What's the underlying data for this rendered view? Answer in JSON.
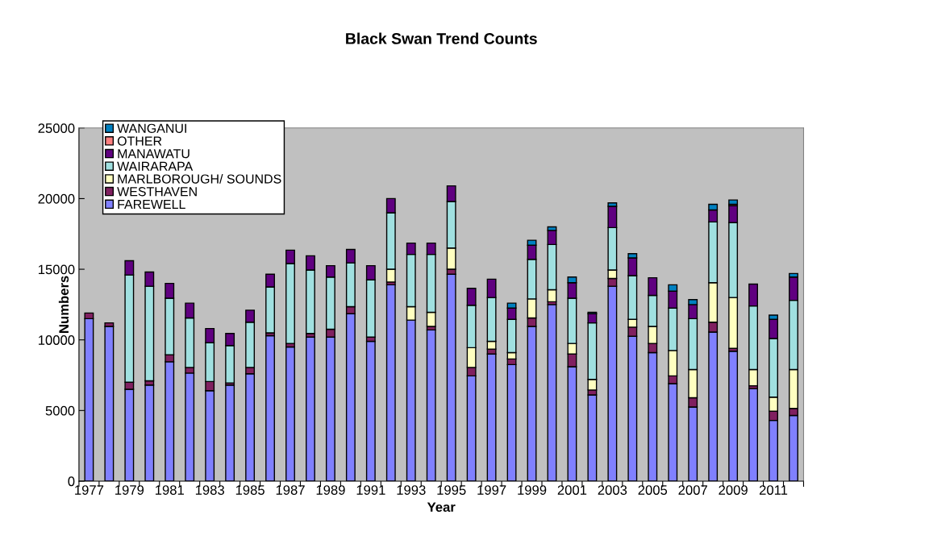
{
  "chart_data": {
    "type": "bar",
    "stacked": true,
    "title": "Black Swan Trend Counts",
    "xlabel": "Year",
    "ylabel": "Numbers",
    "categories": [
      "1977",
      null,
      "1979",
      null,
      "1981",
      null,
      "1983",
      null,
      "1985",
      null,
      "1987",
      null,
      "1989",
      null,
      "1991",
      null,
      "1993",
      null,
      "1995",
      null,
      "1997",
      null,
      "1999",
      null,
      "2001",
      null,
      "2003",
      null,
      "2005",
      null,
      "2007",
      null,
      "2009",
      null,
      "2011",
      null
    ],
    "ylim": [
      0,
      25000
    ],
    "yticks": [
      0,
      5000,
      10000,
      15000,
      20000,
      25000
    ],
    "grid": false,
    "legend": "top left",
    "series": [
      {
        "name": "FAREWELL",
        "color": "#8080ff",
        "values": [
          11500,
          10950,
          6500,
          6800,
          8450,
          7650,
          6400,
          6800,
          7600,
          10300,
          9500,
          10200,
          10200,
          11850,
          9900,
          13900,
          11400,
          10700,
          14650,
          7450,
          9000,
          8250,
          10950,
          12500,
          8100,
          6100,
          13800,
          10250,
          9100,
          6900,
          5250,
          10550,
          9200,
          6550,
          4300,
          4650
        ]
      },
      {
        "name": "WESTHAVEN",
        "color": "#802060",
        "values": [
          400,
          250,
          500,
          300,
          500,
          400,
          650,
          150,
          450,
          200,
          250,
          250,
          550,
          500,
          300,
          200,
          null,
          250,
          350,
          600,
          350,
          400,
          600,
          200,
          900,
          350,
          550,
          650,
          650,
          550,
          650,
          700,
          200,
          200,
          650,
          500
        ]
      },
      {
        "name": "MARLBOROUGH/ SOUNDS",
        "color": "#ffffc0",
        "values": [
          null,
          null,
          null,
          null,
          null,
          null,
          null,
          null,
          null,
          null,
          null,
          null,
          null,
          null,
          null,
          900,
          950,
          1000,
          1500,
          1400,
          550,
          450,
          1350,
          850,
          750,
          750,
          600,
          550,
          1200,
          1800,
          2000,
          2800,
          3600,
          1150,
          1000,
          2750
        ]
      },
      {
        "name": "WAIRARAPA",
        "color": "#a0e0e0",
        "values": [
          null,
          null,
          7600,
          6700,
          4000,
          3500,
          2750,
          2650,
          3200,
          3250,
          5650,
          4500,
          3700,
          3100,
          4050,
          4000,
          3700,
          4100,
          3300,
          3000,
          3100,
          2350,
          2800,
          3200,
          3200,
          4000,
          3000,
          3100,
          2200,
          3000,
          3600,
          4300,
          5300,
          4500,
          4150,
          4900
        ]
      },
      {
        "name": "MANAWATU",
        "color": "#600080",
        "values": [
          null,
          null,
          1000,
          1000,
          1050,
          1050,
          1000,
          850,
          850,
          900,
          950,
          1000,
          800,
          950,
          1000,
          1000,
          800,
          800,
          1100,
          1200,
          1300,
          800,
          1000,
          1000,
          1100,
          650,
          1500,
          1250,
          1250,
          1200,
          1000,
          850,
          1200,
          1550,
          1350,
          1650
        ]
      },
      {
        "name": "OTHER",
        "color": "#ff8080",
        "values": [
          null,
          null,
          null,
          null,
          null,
          null,
          null,
          null,
          null,
          null,
          null,
          null,
          null,
          null,
          null,
          null,
          null,
          null,
          null,
          null,
          null,
          null,
          null,
          null,
          null,
          null,
          null,
          null,
          null,
          null,
          null,
          null,
          100,
          null,
          null,
          null
        ]
      },
      {
        "name": "WANGANUI",
        "color": "#0080c0",
        "values": [
          null,
          null,
          null,
          null,
          null,
          null,
          null,
          null,
          null,
          null,
          null,
          null,
          null,
          null,
          null,
          null,
          null,
          null,
          null,
          null,
          null,
          350,
          350,
          250,
          400,
          100,
          250,
          300,
          null,
          450,
          350,
          400,
          300,
          null,
          300,
          250
        ]
      }
    ]
  }
}
